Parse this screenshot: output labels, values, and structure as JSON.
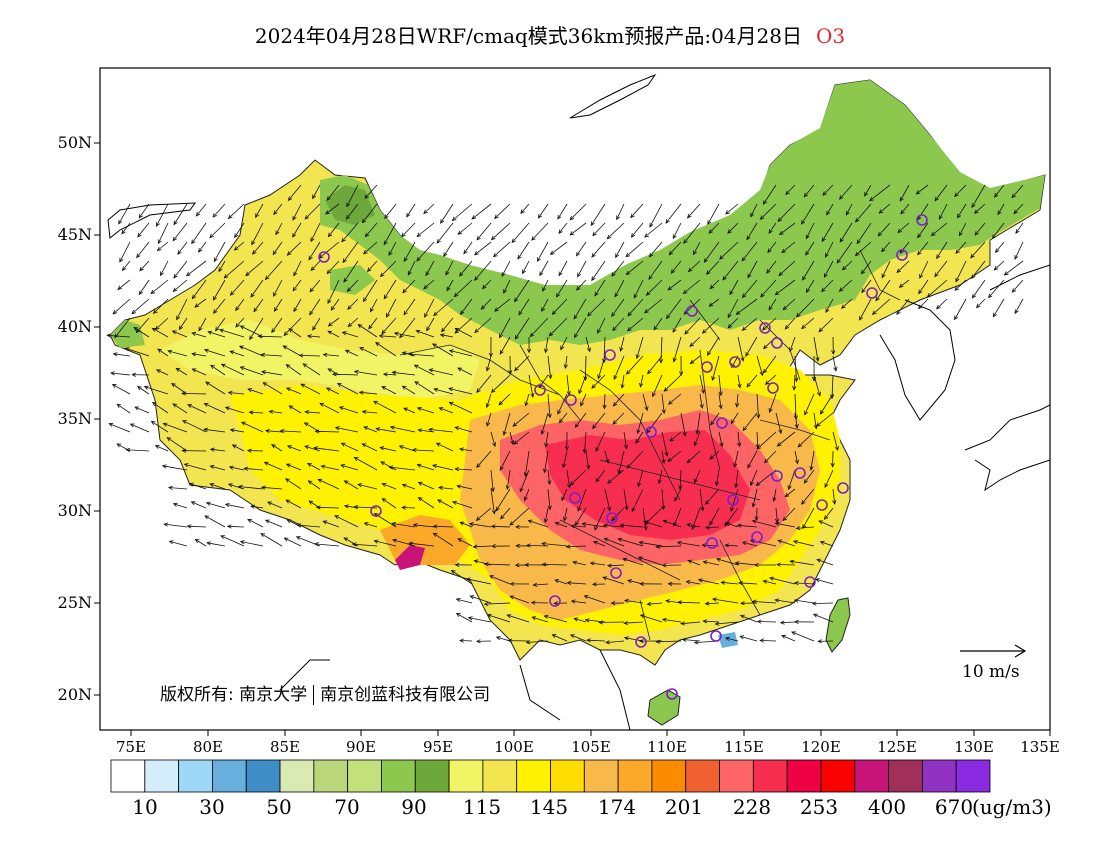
{
  "header": {
    "title": "2024年04月28日WRF/cmaq模式36km预报产品:04月28日",
    "species": "O3",
    "species_color": "#e8262e"
  },
  "axes": {
    "lat_labels": [
      "50N",
      "45N",
      "40N",
      "35N",
      "30N",
      "25N",
      "20N"
    ],
    "lon_labels": [
      "75E",
      "80E",
      "85E",
      "90E",
      "95E",
      "100E",
      "105E",
      "110E",
      "115E",
      "120E",
      "125E",
      "130E",
      "135E"
    ]
  },
  "colorbar": {
    "colors": [
      "#ffffff",
      "#d4eefc",
      "#9dd8f6",
      "#68afdd",
      "#3f8cc7",
      "#dbeab2",
      "#bbd67a",
      "#c3e07c",
      "#8cc84e",
      "#6fa83a",
      "#f1f565",
      "#f3e54f",
      "#fff200",
      "#fede00",
      "#f9b84a",
      "#fca92a",
      "#fb8b00",
      "#f06030",
      "#fc6465",
      "#f82e50",
      "#ef0044",
      "#fb0000",
      "#c81379",
      "#a0305a",
      "#9033c3",
      "#8a2be2"
    ],
    "labels": [
      "10",
      "30",
      "50",
      "70",
      "90",
      "115",
      "145",
      "174",
      "201",
      "228",
      "253",
      "400",
      "670"
    ],
    "unit": "(ug/m3)"
  },
  "map": {
    "copyright_label": "版权所有:",
    "copyright_org1": "南京大学",
    "copyright_org2": "南京创蓝科技有限公司",
    "wind_scale_label": "10 m/s"
  }
}
